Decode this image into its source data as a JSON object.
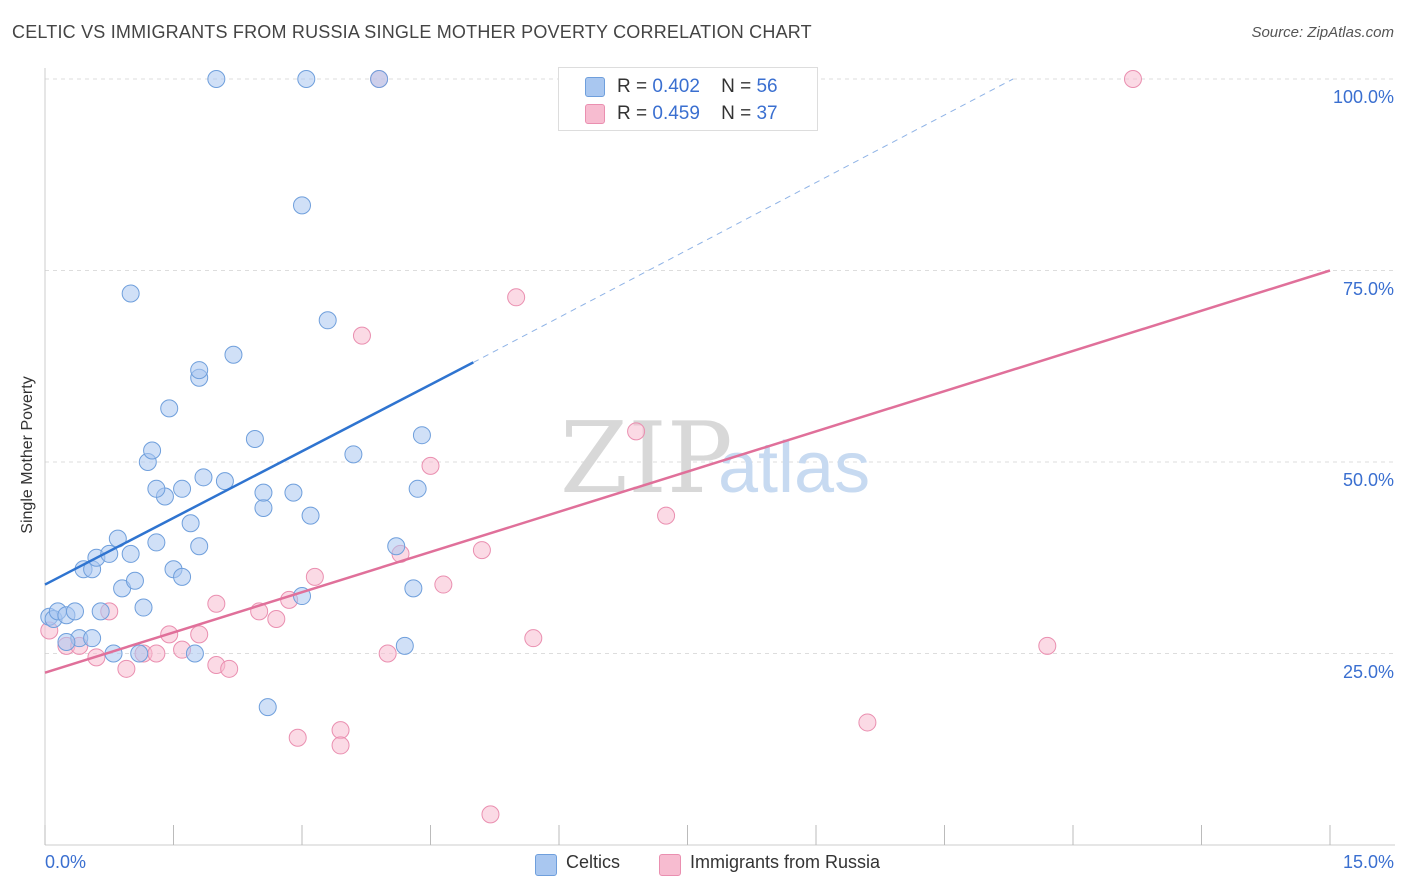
{
  "title": "CELTIC VS IMMIGRANTS FROM RUSSIA SINGLE MOTHER POVERTY CORRELATION CHART",
  "source": "Source: ZipAtlas.com",
  "legend": {
    "rows": [
      {
        "r_label": "R =",
        "r_value": "0.402",
        "n_label": "N =",
        "n_value": "56"
      },
      {
        "r_label": "R =",
        "r_value": "0.459",
        "n_label": "N =",
        "n_value": "37"
      }
    ]
  },
  "bottom_legend": {
    "celtics": "Celtics",
    "russia": "Immigrants from Russia"
  },
  "colors": {
    "celtics_fill": "#a9c7f0",
    "celtics_stroke": "#6f9fdc",
    "celtics_line": "#2f74d0",
    "russia_fill": "#f7bcd0",
    "russia_stroke": "#ea8fb0",
    "russia_line": "#e0709a",
    "tick_text": "#3a6fd0",
    "grid": "#dddddd"
  },
  "watermark": {
    "zip": "ZIP",
    "atlas": "atlas"
  },
  "chart_data": {
    "type": "scatter",
    "title": "CELTIC VS IMMIGRANTS FROM RUSSIA SINGLE MOTHER POVERTY CORRELATION CHART",
    "xlabel": "",
    "ylabel": "Single Mother Poverty",
    "xlim": [
      0,
      15
    ],
    "ylim": [
      0,
      100
    ],
    "x_tick_labels": [
      {
        "value": 0,
        "label": "0.0%"
      },
      {
        "value": 15,
        "label": "15.0%"
      }
    ],
    "y_tick_labels": [
      {
        "value": 25,
        "label": "25.0%"
      },
      {
        "value": 50,
        "label": "50.0%"
      },
      {
        "value": 75,
        "label": "75.0%"
      },
      {
        "value": 100,
        "label": "100.0%"
      }
    ],
    "legend_placement": "top-center",
    "series": [
      {
        "name": "Celtics",
        "r": 0.402,
        "n": 56,
        "trend": {
          "x": [
            0,
            5
          ],
          "y": [
            34,
            63
          ]
        },
        "trend_dashed": {
          "x": [
            5,
            11.3
          ],
          "y": [
            63,
            100
          ]
        },
        "points": [
          [
            0.05,
            29.8
          ],
          [
            0.1,
            29.5
          ],
          [
            0.15,
            30.5
          ],
          [
            0.25,
            30
          ],
          [
            0.35,
            30.5
          ],
          [
            0.4,
            27
          ],
          [
            0.25,
            26.5
          ],
          [
            0.45,
            36
          ],
          [
            0.55,
            36
          ],
          [
            0.6,
            37.5
          ],
          [
            0.75,
            38
          ],
          [
            0.85,
            40
          ],
          [
            0.65,
            30.5
          ],
          [
            0.9,
            33.5
          ],
          [
            1.05,
            34.5
          ],
          [
            1.15,
            31
          ],
          [
            1.0,
            38
          ],
          [
            0.55,
            27
          ],
          [
            0.8,
            25
          ],
          [
            1.3,
            39.5
          ],
          [
            1.5,
            36
          ],
          [
            1.4,
            45.5
          ],
          [
            1.3,
            46.5
          ],
          [
            1.2,
            50
          ],
          [
            1.25,
            51.5
          ],
          [
            1.6,
            46.5
          ],
          [
            1.7,
            42
          ],
          [
            1.75,
            25
          ],
          [
            1.6,
            35
          ],
          [
            1.8,
            39
          ],
          [
            1.45,
            57
          ],
          [
            1.8,
            61
          ],
          [
            1.8,
            62
          ],
          [
            2.2,
            64
          ],
          [
            1.85,
            48
          ],
          [
            2.1,
            47.5
          ],
          [
            2.45,
            53
          ],
          [
            2.55,
            44
          ],
          [
            2.55,
            46
          ],
          [
            2.9,
            46
          ],
          [
            3.0,
            32.5
          ],
          [
            3.1,
            43
          ],
          [
            3.3,
            68.5
          ],
          [
            3.6,
            51
          ],
          [
            4.1,
            39
          ],
          [
            4.3,
            33.5
          ],
          [
            4.35,
            46.5
          ],
          [
            4.4,
            53.5
          ],
          [
            4.2,
            26
          ],
          [
            2.6,
            18
          ],
          [
            1.0,
            72
          ],
          [
            3.0,
            83.5
          ],
          [
            2.0,
            100
          ],
          [
            3.05,
            100
          ],
          [
            3.9,
            100
          ],
          [
            1.1,
            25
          ]
        ]
      },
      {
        "name": "Immigrants from Russia",
        "r": 0.459,
        "n": 37,
        "trend": {
          "x": [
            0,
            15
          ],
          "y": [
            22.5,
            75
          ]
        },
        "points": [
          [
            0.05,
            28
          ],
          [
            0.25,
            26
          ],
          [
            0.4,
            26
          ],
          [
            0.6,
            24.5
          ],
          [
            0.75,
            30.5
          ],
          [
            0.95,
            23
          ],
          [
            1.15,
            25
          ],
          [
            1.3,
            25
          ],
          [
            1.45,
            27.5
          ],
          [
            1.6,
            25.5
          ],
          [
            1.8,
            27.5
          ],
          [
            2.0,
            23.5
          ],
          [
            2.15,
            23
          ],
          [
            2.0,
            31.5
          ],
          [
            2.5,
            30.5
          ],
          [
            2.7,
            29.5
          ],
          [
            2.85,
            32
          ],
          [
            3.15,
            35
          ],
          [
            2.95,
            14
          ],
          [
            3.45,
            15
          ],
          [
            3.45,
            13
          ],
          [
            3.7,
            66.5
          ],
          [
            4.0,
            25
          ],
          [
            4.15,
            38
          ],
          [
            4.65,
            34
          ],
          [
            4.5,
            49.5
          ],
          [
            5.1,
            38.5
          ],
          [
            5.5,
            71.5
          ],
          [
            5.7,
            27
          ],
          [
            6.9,
            54
          ],
          [
            7.25,
            43
          ],
          [
            9.6,
            16
          ],
          [
            11.7,
            26
          ],
          [
            12.7,
            100
          ],
          [
            8.9,
            100
          ],
          [
            3.9,
            100
          ],
          [
            5.2,
            4
          ]
        ]
      }
    ]
  }
}
